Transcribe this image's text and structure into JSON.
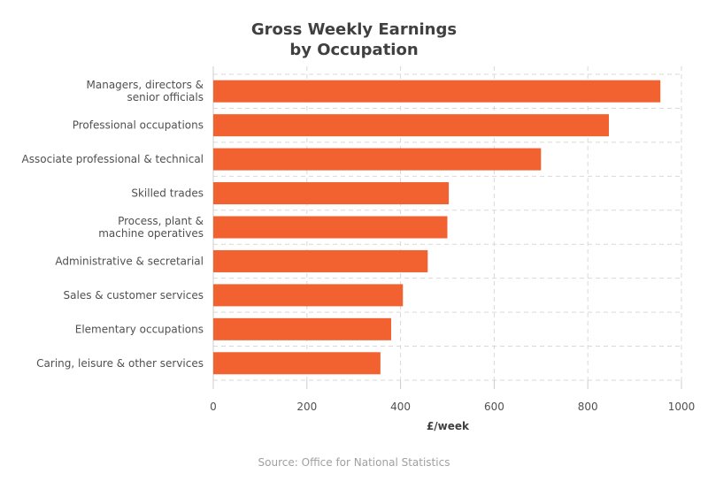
{
  "chart_data": {
    "type": "bar",
    "orientation": "horizontal",
    "title_lines": [
      "Gross Weekly Earnings",
      "by Occupation"
    ],
    "categories": [
      [
        "Managers, directors &",
        "senior officials"
      ],
      [
        "Professional occupations"
      ],
      [
        "Associate professional & technical"
      ],
      [
        "Skilled trades"
      ],
      [
        "Process, plant &",
        "machine operatives"
      ],
      [
        "Administrative & secretarial"
      ],
      [
        "Sales & customer services"
      ],
      [
        "Elementary occupations"
      ],
      [
        "Caring, leisure & other services"
      ]
    ],
    "values": [
      955,
      845,
      700,
      503,
      500,
      458,
      405,
      380,
      357
    ],
    "xlabel": "£/week",
    "xlim": [
      0,
      1000
    ],
    "xticks": [
      0,
      200,
      400,
      600,
      800,
      1000
    ],
    "grid": true,
    "bar_color": "#f26130",
    "source": "Source: Office for National Statistics"
  }
}
